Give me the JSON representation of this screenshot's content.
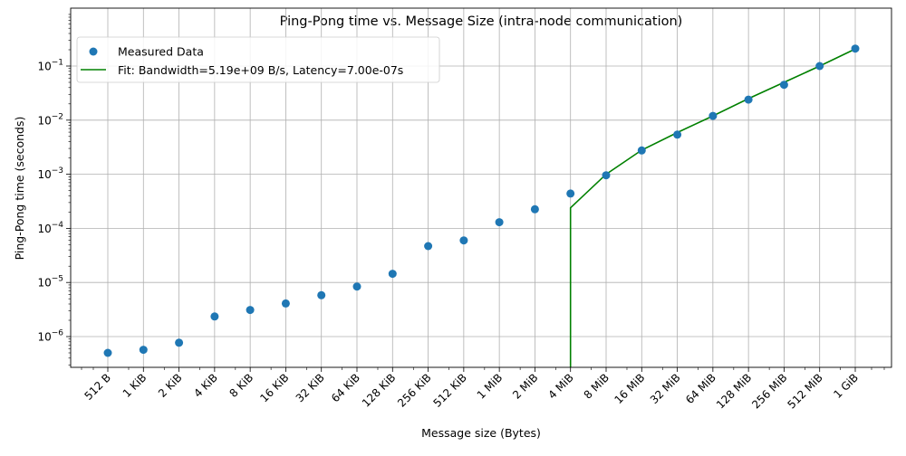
{
  "chart_data": {
    "type": "scatter",
    "title": "Ping-Pong time vs. Message Size (intra-node communication)",
    "xlabel": "Message size (Bytes)",
    "ylabel": "Ping-Pong time (seconds)",
    "x_scale": "log2",
    "y_scale": "log10",
    "grid": true,
    "legend_position": "top-left",
    "x_ticks": [
      {
        "value": 512,
        "label": "512 B"
      },
      {
        "value": 1024,
        "label": "1 KiB"
      },
      {
        "value": 2048,
        "label": "2 KiB"
      },
      {
        "value": 4096,
        "label": "4 KiB"
      },
      {
        "value": 8192,
        "label": "8 KiB"
      },
      {
        "value": 16384,
        "label": "16 KiB"
      },
      {
        "value": 32768,
        "label": "32 KiB"
      },
      {
        "value": 65536,
        "label": "64 KiB"
      },
      {
        "value": 131072,
        "label": "128 KiB"
      },
      {
        "value": 262144,
        "label": "256 KiB"
      },
      {
        "value": 524288,
        "label": "512 KiB"
      },
      {
        "value": 1048576,
        "label": "1 MiB"
      },
      {
        "value": 2097152,
        "label": "2 MiB"
      },
      {
        "value": 4194304,
        "label": "4 MiB"
      },
      {
        "value": 8388608,
        "label": "8 MiB"
      },
      {
        "value": 16777216,
        "label": "16 MiB"
      },
      {
        "value": 33554432,
        "label": "32 MiB"
      },
      {
        "value": 67108864,
        "label": "64 MiB"
      },
      {
        "value": 134217728,
        "label": "128 MiB"
      },
      {
        "value": 268435456,
        "label": "256 MiB"
      },
      {
        "value": 536870912,
        "label": "512 MiB"
      },
      {
        "value": 1073741824,
        "label": "1 GiB"
      }
    ],
    "y_ticks": [
      {
        "value": 1e-06,
        "base": "10",
        "exp": "−6"
      },
      {
        "value": 1e-05,
        "base": "10",
        "exp": "−5"
      },
      {
        "value": 0.0001,
        "base": "10",
        "exp": "−4"
      },
      {
        "value": 0.001,
        "base": "10",
        "exp": "−3"
      },
      {
        "value": 0.01,
        "base": "10",
        "exp": "−2"
      },
      {
        "value": 0.1,
        "base": "10",
        "exp": "−1"
      }
    ],
    "series": [
      {
        "name": "Measured Data",
        "kind": "scatter",
        "color": "#1f77b4",
        "x": [
          512,
          1024,
          2048,
          4096,
          8192,
          16384,
          32768,
          65536,
          131072,
          262144,
          524288,
          1048576,
          2097152,
          4194304,
          8388608,
          16777216,
          33554432,
          67108864,
          134217728,
          268435456,
          536870912,
          1073741824
        ],
        "y": [
          5e-07,
          5.7e-07,
          7.7e-07,
          2.35e-06,
          3.1e-06,
          4.1e-06,
          5.8e-06,
          8.4e-06,
          1.45e-05,
          4.7e-05,
          6e-05,
          0.00013,
          0.000225,
          0.00044,
          0.00096,
          0.00275,
          0.0054,
          0.012,
          0.024,
          0.045,
          0.1,
          0.21
        ]
      },
      {
        "name": "Fit: Bandwidth=5.19e+09 B/s, Latency=7.00e-07s",
        "kind": "line",
        "color": "#008000",
        "bandwidth": 5190000000.0,
        "latency": 7e-07,
        "x": [
          4194304,
          4194304,
          8388608,
          16777216,
          33554432,
          67108864,
          134217728,
          268435456,
          536870912,
          1073741824
        ],
        "y": [
          1e-07,
          0.00024,
          0.001,
          0.0028,
          0.0059,
          0.012,
          0.025,
          0.05,
          0.1,
          0.207
        ]
      }
    ]
  }
}
